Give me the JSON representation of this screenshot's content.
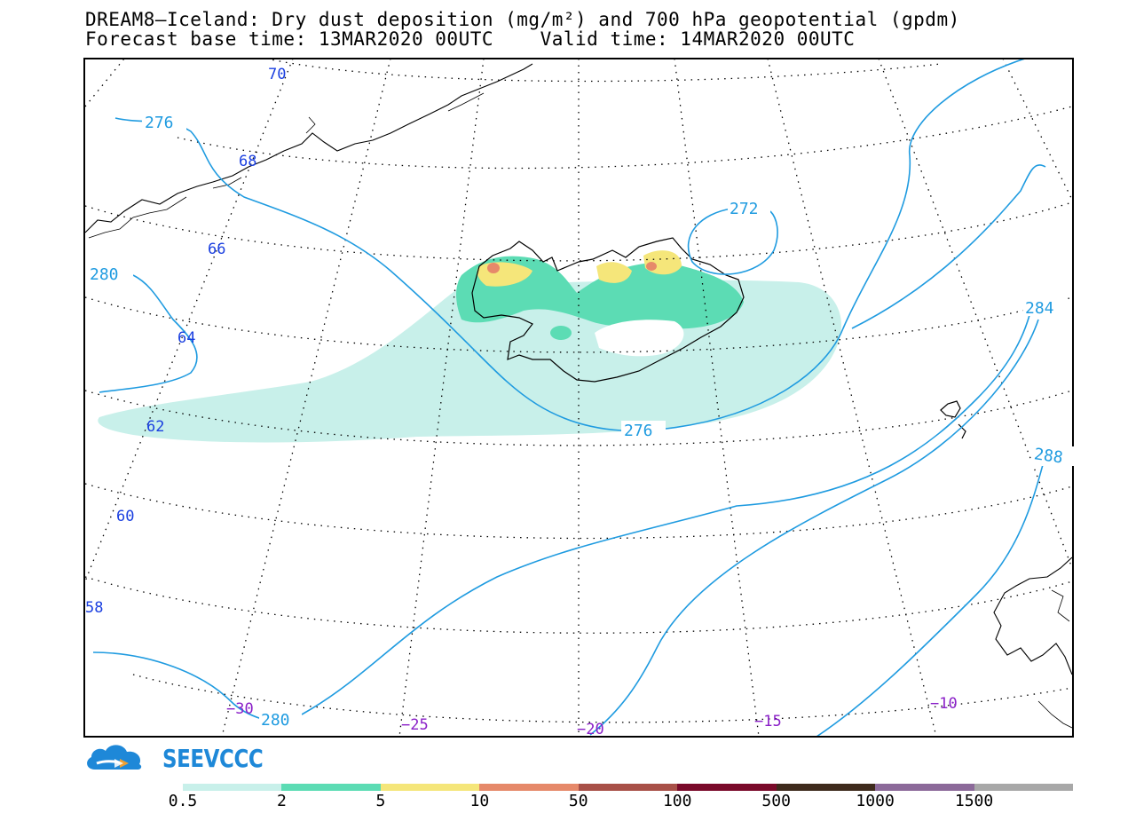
{
  "header": {
    "line1": "DREAM8—Iceland: Dry dust deposition (mg/m²) and 700 hPa geopotential (gpdm)",
    "line2": "Forecast base time: 13MAR2020 00UTC    Valid time: 14MAR2020 00UTC"
  },
  "map": {
    "latitude_labels": [
      "70",
      "68",
      "66",
      "64",
      "62",
      "60",
      "58"
    ],
    "longitude_labels": [
      "−30",
      "−25",
      "−20",
      "−15",
      "−10"
    ],
    "contour_labels": [
      "276",
      "280",
      "272",
      "284",
      "276",
      "288",
      "280"
    ],
    "colors": {
      "frame": "#000000",
      "grid": "#000000",
      "contour": "#1f9be0",
      "lat_label": "#1a3fe0",
      "lon_label": "#8a1fc8",
      "dust_lowest": "#c8f0ea",
      "dust_low": "#5cdcb4",
      "dust_mid": "#f5e67a",
      "dust_high": "#e6896a"
    }
  },
  "logo": {
    "text": "SEEVCCC",
    "icon": "cloud-arrow-icon",
    "color": "#1e88d8"
  },
  "colorbar": {
    "labels": [
      "0.5",
      "2",
      "5",
      "10",
      "50",
      "100",
      "500",
      "1000",
      "1500"
    ],
    "colors": [
      "#c8f0ea",
      "#5cdcb4",
      "#f5e67a",
      "#e6896a",
      "#a85048",
      "#7a0a2a",
      "#3e2a1c",
      "#8c6a9a",
      "#a8a8a8"
    ]
  }
}
